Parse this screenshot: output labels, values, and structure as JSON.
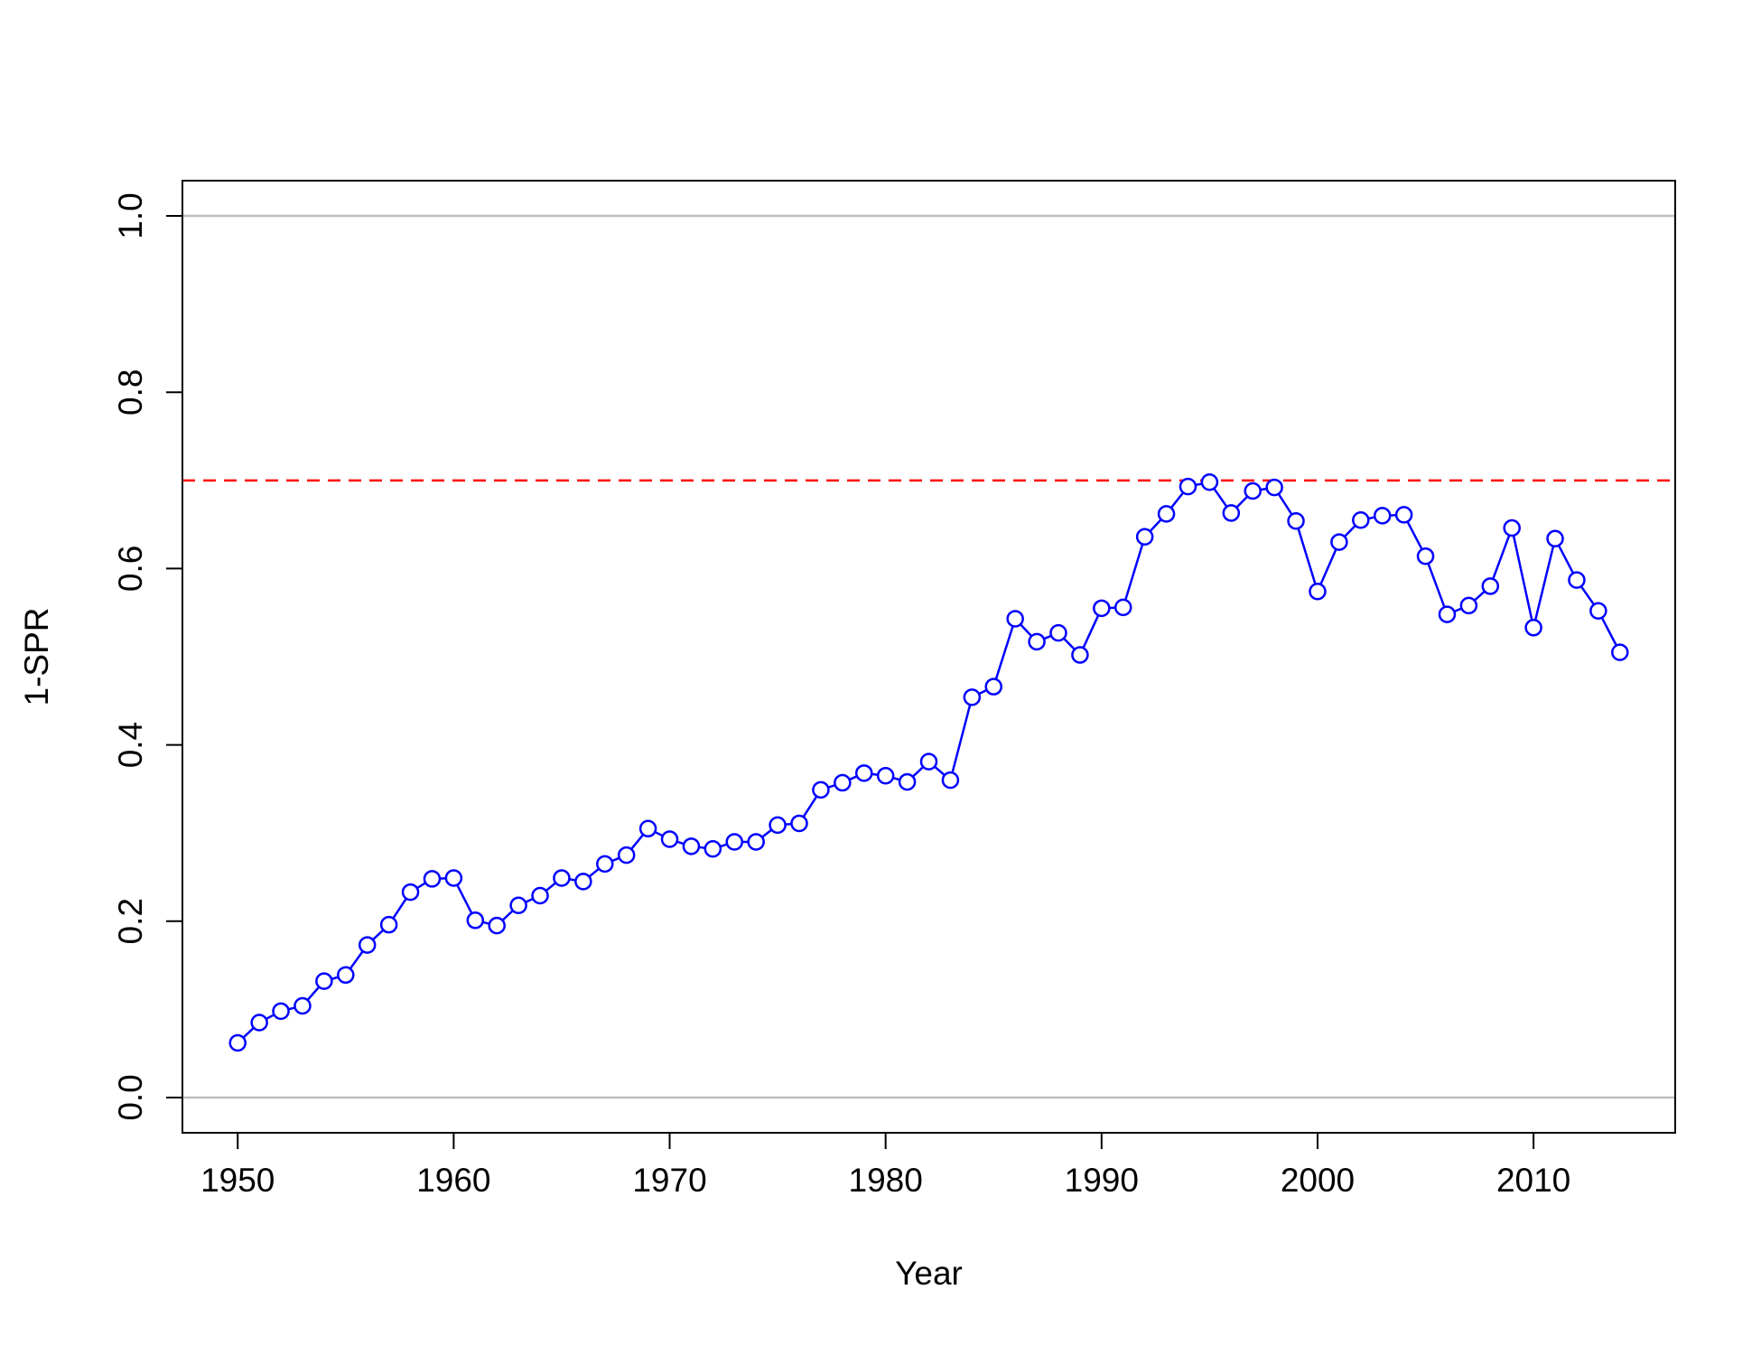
{
  "chart_data": {
    "type": "line",
    "xlabel": "Year",
    "ylabel": "1-SPR",
    "xlim": [
      1947.44,
      2016.56
    ],
    "ylim": [
      -0.04,
      1.04
    ],
    "x_ticks": [
      1950,
      1960,
      1970,
      1980,
      1990,
      2000,
      2010
    ],
    "y_ticks": [
      0.0,
      0.2,
      0.4,
      0.6,
      0.8,
      1.0
    ],
    "x_tick_labels": [
      "1950",
      "1960",
      "1970",
      "1980",
      "1990",
      "2000",
      "2010"
    ],
    "y_tick_labels": [
      "0.0",
      "0.2",
      "0.4",
      "0.6",
      "0.8",
      "1.0"
    ],
    "grid": false,
    "reference_lines": [
      {
        "y": 1.0,
        "color": "#bebebe",
        "style": "solid"
      },
      {
        "y": 0.0,
        "color": "#bebebe",
        "style": "solid"
      },
      {
        "y": 0.7,
        "color": "#ff0000",
        "style": "dashed"
      }
    ],
    "series": [
      {
        "color": "#0000ff",
        "marker": "open-circle",
        "x": [
          1950,
          1951,
          1952,
          1953,
          1954,
          1955,
          1956,
          1957,
          1958,
          1959,
          1960,
          1961,
          1962,
          1963,
          1964,
          1965,
          1966,
          1967,
          1968,
          1969,
          1970,
          1971,
          1972,
          1973,
          1974,
          1975,
          1976,
          1977,
          1978,
          1979,
          1980,
          1981,
          1982,
          1983,
          1984,
          1985,
          1986,
          1987,
          1988,
          1989,
          1990,
          1991,
          1992,
          1993,
          1994,
          1995,
          1996,
          1997,
          1998,
          1999,
          2000,
          2001,
          2002,
          2003,
          2004,
          2005,
          2006,
          2007,
          2008,
          2009,
          2010,
          2011,
          2012,
          2013,
          2014
        ],
        "y": [
          0.062,
          0.085,
          0.098,
          0.104,
          0.132,
          0.139,
          0.173,
          0.196,
          0.233,
          0.248,
          0.249,
          0.201,
          0.195,
          0.218,
          0.229,
          0.249,
          0.245,
          0.265,
          0.275,
          0.305,
          0.293,
          0.285,
          0.282,
          0.29,
          0.29,
          0.309,
          0.311,
          0.349,
          0.357,
          0.368,
          0.365,
          0.358,
          0.381,
          0.36,
          0.454,
          0.466,
          0.543,
          0.517,
          0.527,
          0.502,
          0.555,
          0.556,
          0.636,
          0.662,
          0.693,
          0.698,
          0.663,
          0.688,
          0.692,
          0.654,
          0.574,
          0.63,
          0.655,
          0.66,
          0.661,
          0.614,
          0.548,
          0.558,
          0.58,
          0.646,
          0.533,
          0.634,
          0.587,
          0.552,
          0.505
        ]
      }
    ]
  }
}
